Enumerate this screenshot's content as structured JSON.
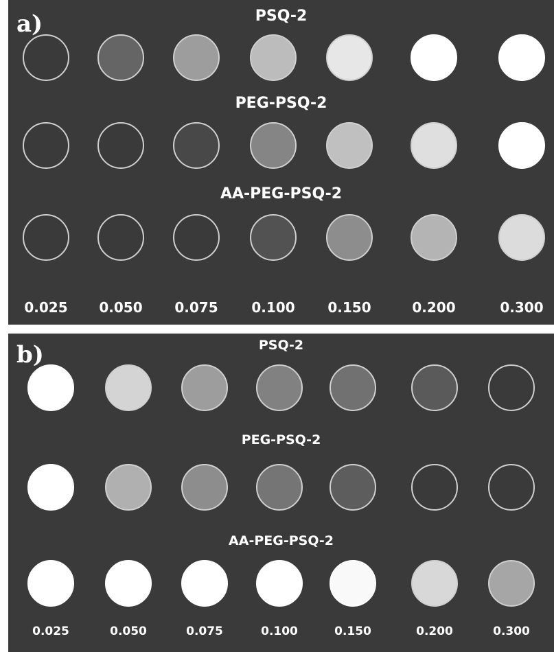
{
  "concentrations": [
    "0.025",
    "0.050",
    "0.075",
    "0.100",
    "0.150",
    "0.200",
    "0.300"
  ],
  "panels": [
    {
      "label": "a)",
      "rows": [
        {
          "title": "PSQ-2",
          "levels": [
            0,
            0.22,
            0.5,
            0.66,
            0.88,
            1,
            1
          ]
        },
        {
          "title": "PEG-PSQ-2",
          "levels": [
            0,
            0,
            0.07,
            0.38,
            0.68,
            0.84,
            1
          ]
        },
        {
          "title": "AA-PEG-PSQ-2",
          "levels": [
            0,
            0,
            0,
            0.12,
            0.42,
            0.62,
            0.82
          ]
        }
      ]
    },
    {
      "label": "b)",
      "rows": [
        {
          "title": "PSQ-2",
          "levels": [
            1,
            0.78,
            0.5,
            0.36,
            0.28,
            0.16,
            0
          ]
        },
        {
          "title": "PEG-PSQ-2",
          "levels": [
            1,
            0.6,
            0.42,
            0.3,
            0.18,
            0,
            0
          ]
        },
        {
          "title": "AA-PEG-PSQ-2",
          "levels": [
            1,
            1,
            1,
            1,
            0.97,
            0.8,
            0.55
          ]
        }
      ]
    }
  ]
}
